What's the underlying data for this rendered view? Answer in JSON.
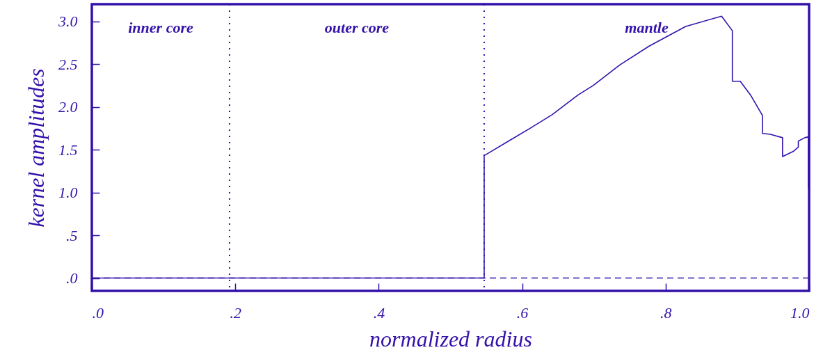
{
  "chart_data": {
    "type": "line",
    "xlabel": "normalized radius",
    "ylabel": "kernel amplitudes",
    "xlim": [
      0,
      1.0
    ],
    "ylim": [
      -0.15,
      3.2
    ],
    "xticks": [
      {
        "value": 0,
        "label": ".0"
      },
      {
        "value": 0.2,
        "label": ".2"
      },
      {
        "value": 0.4,
        "label": ".4"
      },
      {
        "value": 0.6,
        "label": ".6"
      },
      {
        "value": 0.8,
        "label": ".8"
      },
      {
        "value": 1.0,
        "label": "1.0"
      }
    ],
    "yticks": [
      {
        "value": 0,
        "label": ".0"
      },
      {
        "value": 0.5,
        "label": ".5"
      },
      {
        "value": 1.0,
        "label": "1.0"
      },
      {
        "value": 1.5,
        "label": "1.5"
      },
      {
        "value": 2.0,
        "label": "2.0"
      },
      {
        "value": 2.5,
        "label": "2.5"
      },
      {
        "value": 3.0,
        "label": "3.0"
      }
    ],
    "series": [
      {
        "color": "#3311aa",
        "x": [
          0,
          0.547,
          0.547,
          0.583,
          0.615,
          0.642,
          0.678,
          0.699,
          0.736,
          0.777,
          0.828,
          0.878,
          0.893,
          0.893,
          0.904,
          0.919,
          0.935,
          0.935,
          0.946,
          0.963,
          0.963,
          0.978,
          0.985,
          0.985,
          0.994,
          0.999,
          0.999
        ],
        "values": [
          0,
          0,
          1.43,
          1.61,
          1.77,
          1.91,
          2.14,
          2.25,
          2.49,
          2.71,
          2.94,
          3.06,
          2.89,
          2.3,
          2.3,
          2.13,
          1.9,
          1.69,
          1.68,
          1.64,
          1.42,
          1.48,
          1.53,
          1.6,
          1.64,
          1.65,
          1.05
        ]
      }
    ],
    "ref_lines": [
      {
        "axis": "x",
        "value": 0.192,
        "line_style": "dotted",
        "color": "#3311aa"
      },
      {
        "axis": "x",
        "value": 0.547,
        "line_style": "dotted",
        "color": "#3311aa"
      },
      {
        "axis": "y",
        "value": 0,
        "line_style": "dashed",
        "color": "#3311aa"
      }
    ],
    "annotations": [
      "inner core",
      "outer core",
      "mantle"
    ],
    "line_style": "solid",
    "grid": false
  }
}
